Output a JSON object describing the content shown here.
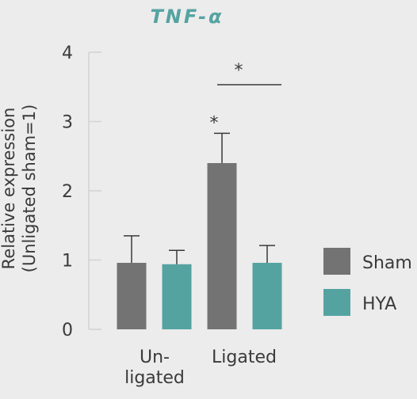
{
  "chart_data": {
    "type": "bar",
    "title": "TNF-α",
    "ylabel_line1": "Relative expression",
    "ylabel_line2": "(Unligated sham=1)",
    "ylim": [
      0,
      4
    ],
    "yticks": [
      "0",
      "1",
      "2",
      "3",
      "4"
    ],
    "categories": [
      {
        "line1": "Un-",
        "line2": "ligated"
      },
      {
        "line1": "Ligated",
        "line2": ""
      }
    ],
    "series": [
      {
        "name": "Sham",
        "color": "#737373",
        "values": [
          0.96,
          2.4
        ],
        "errors": [
          0.39,
          0.43
        ]
      },
      {
        "name": "HYA",
        "color": "#55a3a1",
        "values": [
          0.94,
          0.96
        ],
        "errors": [
          0.2,
          0.25
        ]
      }
    ],
    "title_color": "#55a3a1",
    "annotations": {
      "star_bar": "*",
      "star_bracket": "*"
    },
    "legend_position": "right",
    "grid": false
  }
}
